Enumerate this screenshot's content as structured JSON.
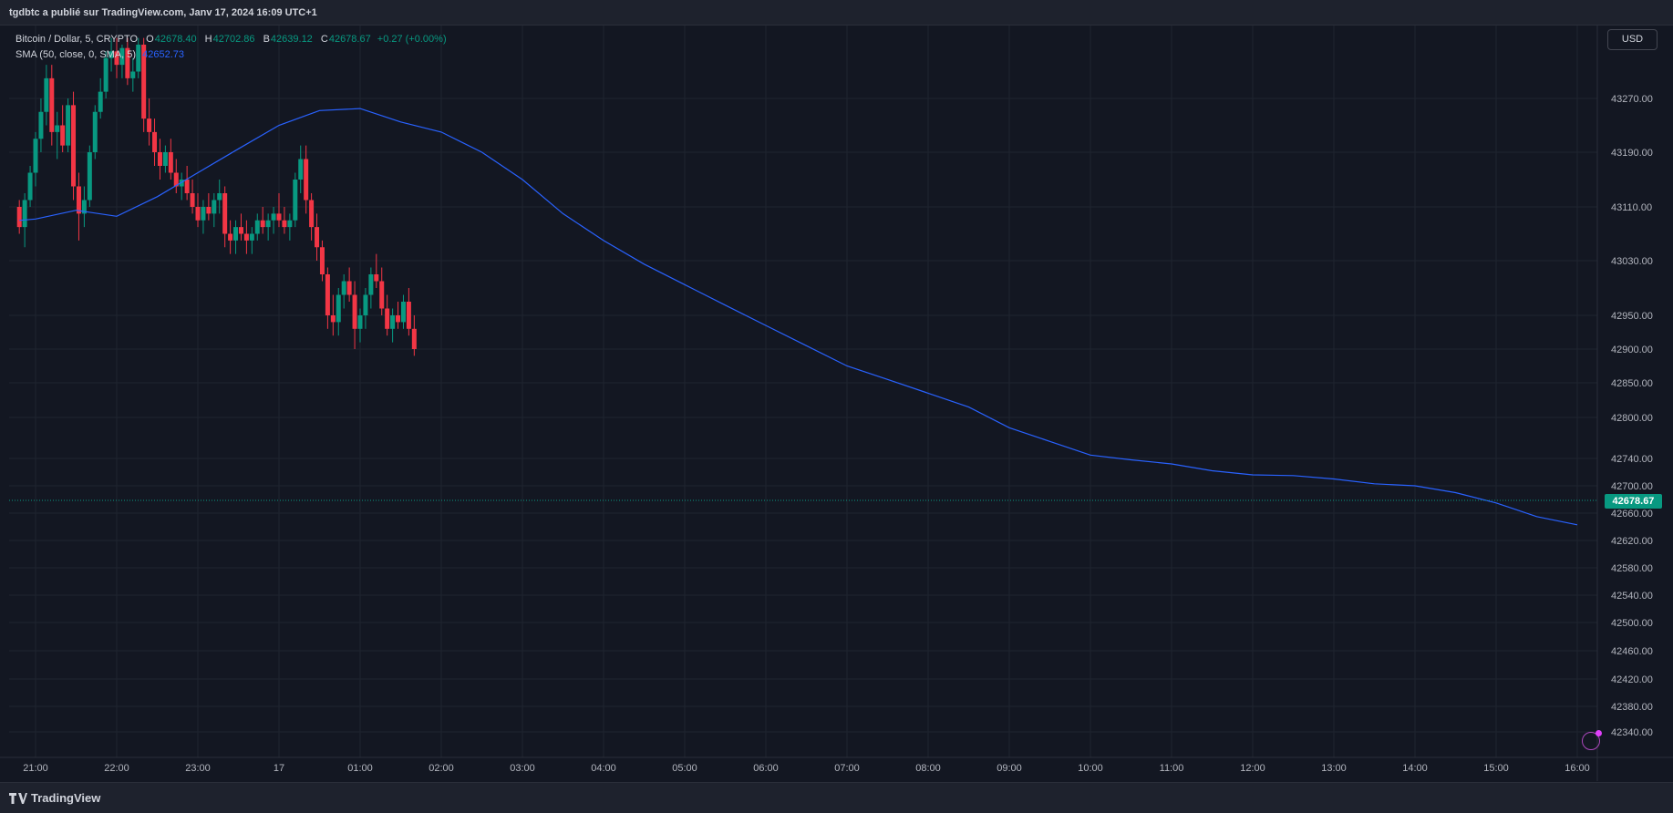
{
  "header": {
    "published_by": "tgdbtc a publié sur TradingView.com, Janv 17, 2024 16:09 UTC+1"
  },
  "legend": {
    "symbol": "Bitcoin / Dollar, 5, CRYPTO",
    "open_label": "O",
    "open_value": "42678.40",
    "high_label": "H",
    "high_value": "42702.86",
    "low_label": "B",
    "low_value": "42639.12",
    "close_label": "C",
    "close_value": "42678.67",
    "change": "+0.27 (+0.00%)",
    "sma_label": "SMA (50, close, 0, SMA, 5)",
    "sma_value": "42652.73"
  },
  "currency_button": "USD",
  "footer": {
    "brand": "TradingView"
  },
  "colors": {
    "up": "#089981",
    "down": "#f23645",
    "sma": "#2962ff",
    "background": "#131722",
    "grid": "#1f2430"
  },
  "chart_data": {
    "type": "candlestick",
    "symbol": "Bitcoin / Dollar",
    "interval": "5",
    "y_ticks": [
      42340,
      42380,
      42420,
      42460,
      42500,
      42540,
      42580,
      42620,
      42660,
      42700,
      42740,
      42800,
      42850,
      42900,
      42950,
      43030,
      43110,
      43190,
      43270
    ],
    "y_tick_labels": [
      "42340.00",
      "42380.00",
      "42420.00",
      "42460.00",
      "42500.00",
      "42540.00",
      "42580.00",
      "42620.00",
      "42660.00",
      "42700.00",
      "42740.00",
      "42800.00",
      "42850.00",
      "42900.00",
      "42950.00",
      "43030.00",
      "43110.00",
      "43190.00",
      "43270.00"
    ],
    "x_ticks": [
      "21:00",
      "22:00",
      "23:00",
      "17",
      "01:00",
      "02:00",
      "03:00",
      "04:00",
      "05:00",
      "06:00",
      "07:00",
      "08:00",
      "09:00",
      "10:00",
      "11:00",
      "12:00",
      "13:00",
      "14:00",
      "15:00",
      "16:00"
    ],
    "last_price": "42678.67",
    "sma_points": [
      [
        "20:48",
        43090
      ],
      [
        "21:00",
        43092
      ],
      [
        "21:30",
        43105
      ],
      [
        "22:00",
        43096
      ],
      [
        "22:30",
        43125
      ],
      [
        "23:00",
        43160
      ],
      [
        "23:30",
        43195
      ],
      [
        "00:00",
        43230
      ],
      [
        "00:30",
        43252
      ],
      [
        "01:00",
        43255
      ],
      [
        "01:30",
        43235
      ],
      [
        "02:00",
        43220
      ],
      [
        "02:30",
        43190
      ],
      [
        "03:00",
        43150
      ],
      [
        "03:30",
        43100
      ],
      [
        "04:00",
        43060
      ],
      [
        "04:30",
        43025
      ],
      [
        "05:00",
        42995
      ],
      [
        "05:30",
        42965
      ],
      [
        "06:00",
        42935
      ],
      [
        "06:30",
        42905
      ],
      [
        "07:00",
        42875
      ],
      [
        "07:30",
        42855
      ],
      [
        "08:00",
        42835
      ],
      [
        "08:30",
        42815
      ],
      [
        "09:00",
        42785
      ],
      [
        "09:30",
        42765
      ],
      [
        "10:00",
        42745
      ],
      [
        "10:30",
        42738
      ],
      [
        "11:00",
        42732
      ],
      [
        "11:30",
        42722
      ],
      [
        "12:00",
        42716
      ],
      [
        "12:30",
        42715
      ],
      [
        "13:00",
        42710
      ],
      [
        "13:30",
        42703
      ],
      [
        "14:00",
        42700
      ],
      [
        "14:30",
        42690
      ],
      [
        "15:00",
        42675
      ],
      [
        "15:30",
        42655
      ],
      [
        "16:00",
        42643
      ]
    ],
    "ohlc_points": [
      [
        "20:48",
        43110,
        43120,
        43070,
        43080
      ],
      [
        "20:52",
        43080,
        43130,
        43050,
        43120
      ],
      [
        "20:56",
        43120,
        43170,
        43110,
        43160
      ],
      [
        "21:00",
        43160,
        43220,
        43140,
        43210
      ],
      [
        "21:04",
        43210,
        43270,
        43190,
        43250
      ],
      [
        "21:08",
        43250,
        43320,
        43230,
        43300
      ],
      [
        "21:12",
        43300,
        43320,
        43200,
        43220
      ],
      [
        "21:16",
        43220,
        43250,
        43180,
        43230
      ],
      [
        "21:20",
        43230,
        43260,
        43190,
        43200
      ],
      [
        "21:24",
        43200,
        43270,
        43190,
        43260
      ],
      [
        "21:28",
        43260,
        43280,
        43120,
        43140
      ],
      [
        "21:32",
        43140,
        43160,
        43060,
        43100
      ],
      [
        "21:36",
        43100,
        43140,
        43080,
        43120
      ],
      [
        "21:40",
        43120,
        43200,
        43110,
        43190
      ],
      [
        "21:44",
        43190,
        43260,
        43180,
        43250
      ],
      [
        "21:48",
        43250,
        43300,
        43240,
        43280
      ],
      [
        "21:52",
        43280,
        43340,
        43270,
        43330
      ],
      [
        "21:56",
        43330,
        43360,
        43310,
        43340
      ],
      [
        "22:00",
        43340,
        43360,
        43300,
        43320
      ],
      [
        "22:04",
        43320,
        43350,
        43300,
        43345
      ],
      [
        "22:08",
        43345,
        43360,
        43290,
        43300
      ],
      [
        "22:12",
        43300,
        43330,
        43280,
        43310
      ],
      [
        "22:16",
        43310,
        43360,
        43300,
        43350
      ],
      [
        "22:20",
        43350,
        43360,
        43220,
        43240
      ],
      [
        "22:24",
        43240,
        43270,
        43200,
        43220
      ],
      [
        "22:28",
        43220,
        43240,
        43170,
        43190
      ],
      [
        "22:32",
        43190,
        43210,
        43150,
        43170
      ],
      [
        "22:36",
        43170,
        43200,
        43160,
        43190
      ],
      [
        "22:40",
        43190,
        43210,
        43150,
        43160
      ],
      [
        "22:44",
        43160,
        43180,
        43130,
        43140
      ],
      [
        "22:48",
        43140,
        43160,
        43120,
        43150
      ],
      [
        "22:52",
        43150,
        43170,
        43120,
        43130
      ],
      [
        "22:56",
        43130,
        43150,
        43100,
        43110
      ],
      [
        "23:00",
        43110,
        43130,
        43080,
        43090
      ],
      [
        "23:04",
        43090,
        43120,
        43070,
        43110
      ],
      [
        "23:08",
        43110,
        43130,
        43090,
        43100
      ],
      [
        "23:12",
        43100,
        43130,
        43080,
        43120
      ],
      [
        "23:16",
        43120,
        43150,
        43100,
        43130
      ],
      [
        "23:20",
        43130,
        43140,
        43050,
        43070
      ],
      [
        "23:24",
        43070,
        43090,
        43040,
        43060
      ],
      [
        "23:28",
        43060,
        43090,
        43040,
        43080
      ],
      [
        "23:32",
        43080,
        43100,
        43060,
        43070
      ],
      [
        "23:36",
        43070,
        43090,
        43040,
        43060
      ],
      [
        "23:40",
        43060,
        43080,
        43040,
        43070
      ],
      [
        "23:44",
        43070,
        43100,
        43060,
        43090
      ],
      [
        "23:48",
        43090,
        43110,
        43070,
        43080
      ],
      [
        "23:52",
        43080,
        43100,
        43060,
        43090
      ],
      [
        "23:56",
        43090,
        43110,
        43070,
        43100
      ],
      [
        "00:00",
        43100,
        43130,
        43080,
        43090
      ],
      [
        "00:04",
        43090,
        43110,
        43070,
        43080
      ],
      [
        "00:08",
        43080,
        43100,
        43060,
        43090
      ],
      [
        "00:12",
        43090,
        43160,
        43080,
        43150
      ],
      [
        "00:16",
        43150,
        43200,
        43130,
        43180
      ],
      [
        "00:20",
        43180,
        43200,
        43100,
        43120
      ],
      [
        "00:24",
        43120,
        43130,
        43060,
        43080
      ],
      [
        "00:28",
        43080,
        43100,
        43030,
        43050
      ],
      [
        "00:32",
        43050,
        43060,
        43000,
        43010
      ],
      [
        "00:36",
        43010,
        43020,
        42930,
        42950
      ],
      [
        "00:40",
        42950,
        42980,
        42920,
        42940
      ],
      [
        "00:44",
        42940,
        42990,
        42920,
        42980
      ],
      [
        "00:48",
        42980,
        43010,
        42960,
        43000
      ],
      [
        "00:52",
        43000,
        43020,
        42970,
        42980
      ],
      [
        "00:56",
        42980,
        43000,
        42900,
        42930
      ],
      [
        "01:00",
        42930,
        42960,
        42910,
        42950
      ],
      [
        "01:04",
        42950,
        42990,
        42930,
        42980
      ],
      [
        "01:08",
        42980,
        43020,
        42960,
        43010
      ],
      [
        "01:12",
        43010,
        43040,
        42990,
        43000
      ],
      [
        "01:16",
        43000,
        43020,
        42950,
        42960
      ],
      [
        "01:20",
        42960,
        42980,
        42920,
        42930
      ],
      [
        "01:24",
        42930,
        42960,
        42910,
        42950
      ],
      [
        "01:28",
        42950,
        42970,
        42930,
        42940
      ],
      [
        "01:32",
        42940,
        42980,
        42930,
        42970
      ],
      [
        "01:36",
        42970,
        42990,
        42920,
        42930
      ],
      [
        "01:40",
        42930,
        42950,
        42890,
        42900
      ]
    ]
  }
}
